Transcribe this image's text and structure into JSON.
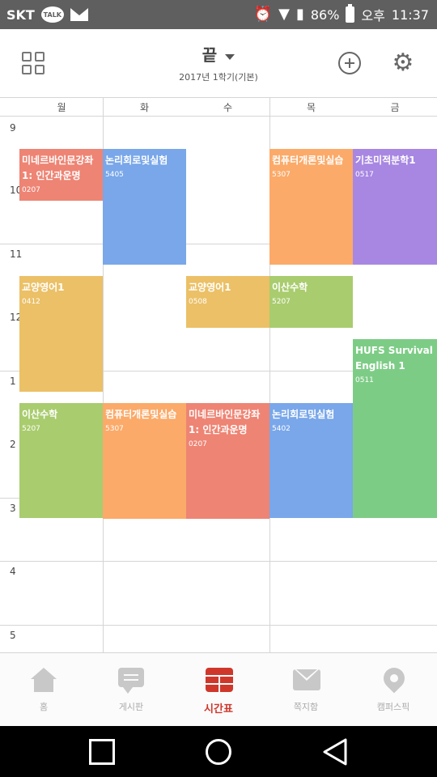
{
  "status_bar": {
    "carrier": "SKT",
    "talk_icon_text": "TALK",
    "battery": "86%",
    "ampm": "오후",
    "time": "11:37"
  },
  "header": {
    "title": "끝",
    "subtitle": "2017년 1학기(기본)"
  },
  "days": [
    "월",
    "화",
    "수",
    "목",
    "금"
  ],
  "hours": [
    "9",
    "10",
    "11",
    "12",
    "1",
    "2",
    "3",
    "4",
    "5"
  ],
  "courses": [
    {
      "name": "미네르바인문강좌1: 인간과운명",
      "room": "0207",
      "color": "#EE8474"
    },
    {
      "name": "논리회로및실험",
      "room": "5405",
      "color": "#79A7E9"
    },
    {
      "name": "컴퓨터개론및실습",
      "room": "5307",
      "color": "#FBAA69"
    },
    {
      "name": "기초미적분학1",
      "room": "0517",
      "color": "#A787E2"
    },
    {
      "name": "교양영어1",
      "room": "0412",
      "color": "#EBC066"
    },
    {
      "name": "교양영어1",
      "room": "0508",
      "color": "#EBC066"
    },
    {
      "name": "이산수학",
      "room": "5207",
      "color": "#A9CC6E"
    },
    {
      "name": "HUFS Survival English 1",
      "room": "0511",
      "color": "#7DCC86"
    },
    {
      "name": "이산수학",
      "room": "5207",
      "color": "#A9CC6E"
    },
    {
      "name": "컴퓨터개론및실습",
      "room": "5307",
      "color": "#FBAA69"
    },
    {
      "name": "미네르바인문강좌1: 인간과운명",
      "room": "0207",
      "color": "#EE8474"
    },
    {
      "name": "논리회로및실험",
      "room": "5402",
      "color": "#79A7E9"
    }
  ],
  "bottom_nav": [
    {
      "label": "홈",
      "icon": "home-icon"
    },
    {
      "label": "게시판",
      "icon": "board-icon"
    },
    {
      "label": "시간표",
      "icon": "timetable-icon"
    },
    {
      "label": "쪽지함",
      "icon": "mailbox-icon"
    },
    {
      "label": "캠퍼스픽",
      "icon": "campuspick-icon"
    }
  ],
  "colors": {
    "accent": "#D0372B",
    "status_bar": "#5F5F5F",
    "grid_line": "#D5D5D5"
  }
}
